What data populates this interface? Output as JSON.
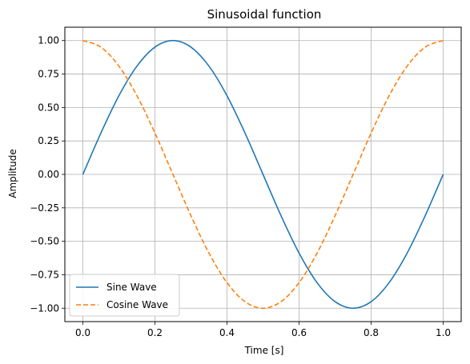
{
  "chart_data": {
    "type": "line",
    "title": "Sinusoidal function",
    "xlabel": "Time [s]",
    "ylabel": "Amplitude",
    "xlim": [
      -0.05,
      1.05
    ],
    "ylim": [
      -1.1,
      1.1
    ],
    "x_ticks": [
      0.0,
      0.2,
      0.4,
      0.6,
      0.8,
      1.0
    ],
    "x_tick_labels": [
      "0.0",
      "0.2",
      "0.4",
      "0.6",
      "0.8",
      "1.0"
    ],
    "y_ticks": [
      1.0,
      0.75,
      0.5,
      0.25,
      0.0,
      -0.25,
      -0.5,
      -0.75,
      -1.0
    ],
    "y_tick_labels": [
      "1.00",
      "0.75",
      "0.50",
      "0.25",
      "0.00",
      "−0.25",
      "−0.50",
      "−0.75",
      "−1.00"
    ],
    "grid": true,
    "legend_position": "lower-left",
    "x": [
      0.0,
      0.05,
      0.1,
      0.15,
      0.2,
      0.25,
      0.3,
      0.35,
      0.4,
      0.45,
      0.5,
      0.55,
      0.6,
      0.65,
      0.7,
      0.75,
      0.8,
      0.85,
      0.9,
      0.95,
      1.0
    ],
    "series": [
      {
        "name": "Sine Wave",
        "color": "#1f77b4",
        "linestyle": "solid",
        "values": [
          0.0,
          0.309,
          0.588,
          0.809,
          0.951,
          1.0,
          0.951,
          0.809,
          0.588,
          0.309,
          0.0,
          -0.309,
          -0.588,
          -0.809,
          -0.951,
          -1.0,
          -0.951,
          -0.809,
          -0.588,
          -0.309,
          0.0
        ]
      },
      {
        "name": "Cosine Wave",
        "color": "#ff7f0e",
        "linestyle": "dashed",
        "values": [
          1.0,
          0.951,
          0.809,
          0.588,
          0.309,
          0.0,
          -0.309,
          -0.588,
          -0.809,
          -0.951,
          -1.0,
          -0.951,
          -0.809,
          -0.588,
          -0.309,
          0.0,
          0.309,
          0.588,
          0.809,
          0.951,
          1.0
        ]
      }
    ]
  }
}
